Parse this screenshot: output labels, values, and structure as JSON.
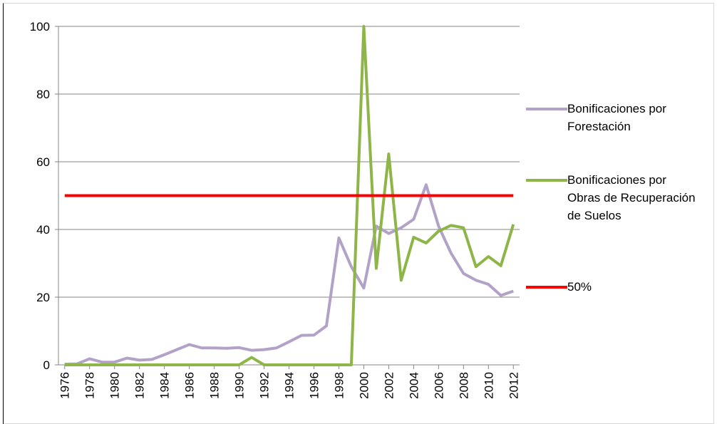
{
  "chart_data": {
    "type": "line",
    "x": [
      1976,
      1977,
      1978,
      1979,
      1980,
      1981,
      1982,
      1983,
      1984,
      1985,
      1986,
      1987,
      1988,
      1989,
      1990,
      1991,
      1992,
      1993,
      1994,
      1995,
      1996,
      1997,
      1998,
      1999,
      2000,
      2001,
      2002,
      2003,
      2004,
      2005,
      2006,
      2007,
      2008,
      2009,
      2010,
      2011,
      2012
    ],
    "xlim": [
      1975.5,
      2012.5
    ],
    "xticks": [
      1976,
      1978,
      1980,
      1982,
      1984,
      1986,
      1988,
      1990,
      1992,
      1994,
      1996,
      1998,
      2000,
      2002,
      2004,
      2006,
      2008,
      2010,
      2012
    ],
    "ylim": [
      0,
      100
    ],
    "yticks": [
      0,
      20,
      40,
      60,
      80,
      100
    ],
    "grid": true,
    "series": [
      {
        "name": "Bonificaciones por Forestación",
        "color": "#b3a2c7",
        "values": [
          0.2,
          0.3,
          1.8,
          0.8,
          0.8,
          2.0,
          1.4,
          1.6,
          3.0,
          4.5,
          6.0,
          5.0,
          5.0,
          4.9,
          5.1,
          4.3,
          4.5,
          5.0,
          6.8,
          8.7,
          8.8,
          11.5,
          37.5,
          29,
          22.7,
          41,
          38.8,
          40.5,
          43,
          53.2,
          41,
          33,
          27,
          25,
          23.8,
          20.5,
          21.8
        ]
      },
      {
        "name": "Bonificaciones por Obras de Recuperación de Suelos",
        "color": "#8db548",
        "values": [
          0,
          0,
          0,
          0,
          0,
          0,
          0,
          0,
          0,
          0,
          0,
          0,
          0,
          0,
          0,
          2.2,
          0,
          0,
          0,
          0,
          0,
          0,
          0,
          0,
          100,
          28.5,
          62.3,
          25,
          37.7,
          36,
          39.5,
          41.2,
          40.5,
          29,
          32,
          29.3,
          41.5
        ]
      },
      {
        "name": "50%",
        "color": "#ff0000",
        "values": [
          50,
          50,
          50,
          50,
          50,
          50,
          50,
          50,
          50,
          50,
          50,
          50,
          50,
          50,
          50,
          50,
          50,
          50,
          50,
          50,
          50,
          50,
          50,
          50,
          50,
          50,
          50,
          50,
          50,
          50,
          50,
          50,
          50,
          50,
          50,
          50,
          50
        ]
      }
    ]
  }
}
